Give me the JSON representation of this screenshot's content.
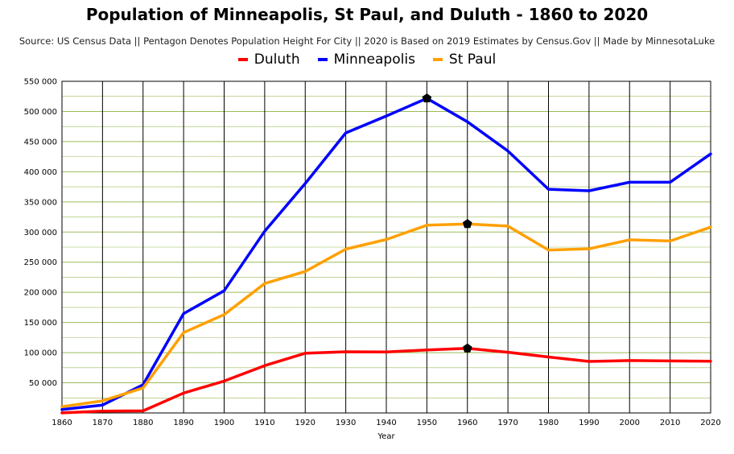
{
  "chart_data": {
    "type": "line",
    "title": "Population of Minneapolis, St Paul, and Duluth - 1860 to 2020",
    "subtitle": "Source: US Census Data || Pentagon Denotes Population Height For City || 2020 is Based on 2019 Estimates by Census.Gov || Made by MinnesotaLuke",
    "xlabel": "Year",
    "ylabel": "",
    "x": [
      1860,
      1870,
      1880,
      1890,
      1900,
      1910,
      1920,
      1930,
      1940,
      1950,
      1960,
      1970,
      1980,
      1990,
      2000,
      2010,
      2020
    ],
    "x_tick_labels": [
      "1860",
      "1870",
      "1880",
      "1890",
      "1900",
      "1910",
      "1920",
      "1930",
      "1940",
      "1950",
      "1960",
      "1970",
      "1980",
      "1990",
      "2000",
      "2010",
      "2020"
    ],
    "ylim": [
      0,
      550000
    ],
    "y_ticks": [
      50000,
      100000,
      150000,
      200000,
      250000,
      300000,
      350000,
      400000,
      450000,
      500000,
      550000
    ],
    "y_tick_labels": [
      "50 000",
      "100 000",
      "150 000",
      "200 000",
      "250 000",
      "300 000",
      "350 000",
      "400 000",
      "450 000",
      "500 000",
      "550 000"
    ],
    "grid": true,
    "legend_position": "top-center",
    "series": [
      {
        "name": "Duluth",
        "color": "#ff0000",
        "values": [
          80,
          3100,
          3500,
          33000,
          52900,
          78500,
          99000,
          101500,
          101100,
          104500,
          107000,
          100600,
          92800,
          85500,
          86900,
          86300,
          85900
        ],
        "peak_index": 10
      },
      {
        "name": "Minneapolis",
        "color": "#0000ff",
        "values": [
          5800,
          13100,
          46900,
          164700,
          202700,
          301400,
          380600,
          464400,
          492400,
          521700,
          482900,
          434400,
          371000,
          368400,
          382600,
          382600,
          429600
        ],
        "peak_index": 9
      },
      {
        "name": "St Paul",
        "color": "#ffa000",
        "values": [
          10400,
          20000,
          41500,
          133200,
          163100,
          214700,
          234700,
          271600,
          287700,
          311300,
          313400,
          309900,
          270200,
          272200,
          287200,
          285100,
          308100
        ],
        "peak_index": 10
      }
    ],
    "colors": {
      "plot_background": "#ffffff",
      "grid_horizontal": "#9bbb59",
      "grid_vertical": "#000000"
    },
    "peak_marker": "pentagon"
  }
}
